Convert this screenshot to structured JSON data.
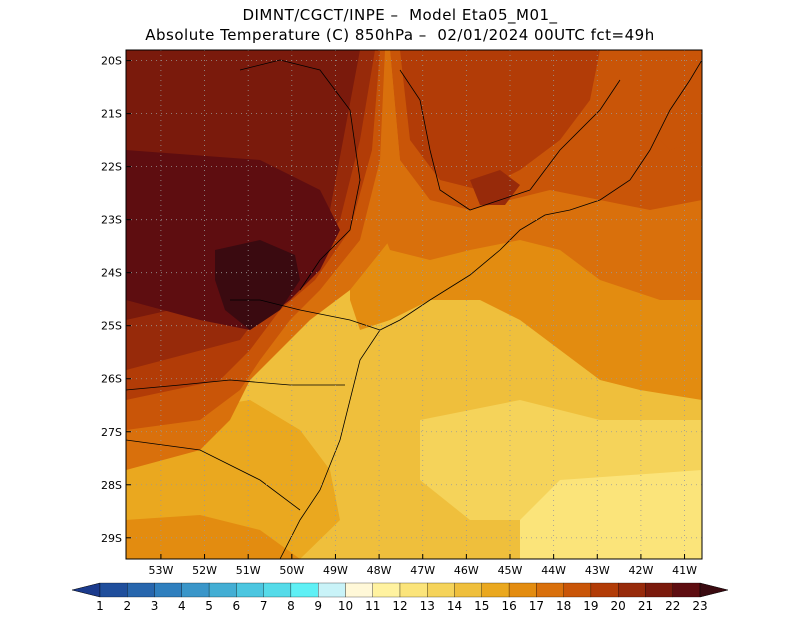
{
  "header": {
    "line1": "DIMNT/CGCT/INPE –  Model Eta05_M01_",
    "line2": "Absolute Temperature (C) 850hPa –  02/01/2024 00UTC fct=49h"
  },
  "map": {
    "lon_range": [
      -53.8,
      -40.6
    ],
    "lat_range": [
      -29.4,
      -19.8
    ],
    "lon_ticks": [
      {
        "value": -53,
        "label": "53W"
      },
      {
        "value": -52,
        "label": "52W"
      },
      {
        "value": -51,
        "label": "51W"
      },
      {
        "value": -50,
        "label": "50W"
      },
      {
        "value": -49,
        "label": "49W"
      },
      {
        "value": -48,
        "label": "48W"
      },
      {
        "value": -47,
        "label": "47W"
      },
      {
        "value": -46,
        "label": "46W"
      },
      {
        "value": -45,
        "label": "45W"
      },
      {
        "value": -44,
        "label": "44W"
      },
      {
        "value": -43,
        "label": "43W"
      },
      {
        "value": -42,
        "label": "42W"
      },
      {
        "value": -41,
        "label": "41W"
      }
    ],
    "lat_ticks": [
      {
        "value": -20,
        "label": "20S"
      },
      {
        "value": -21,
        "label": "21S"
      },
      {
        "value": -22,
        "label": "22S"
      },
      {
        "value": -23,
        "label": "23S"
      },
      {
        "value": -24,
        "label": "24S"
      },
      {
        "value": -25,
        "label": "25S"
      },
      {
        "value": -26,
        "label": "26S"
      },
      {
        "value": -27,
        "label": "27S"
      },
      {
        "value": -28,
        "label": "28S"
      },
      {
        "value": -29,
        "label": "29S"
      }
    ],
    "grid": "dotted"
  },
  "colorbar": {
    "labels": [
      "1",
      "2",
      "3",
      "4",
      "5",
      "6",
      "7",
      "8",
      "9",
      "10",
      "11",
      "12",
      "13",
      "14",
      "15",
      "16",
      "17",
      "18",
      "19",
      "20",
      "21",
      "22",
      "23"
    ],
    "colors": [
      "#1b3a8c",
      "#1f4e9c",
      "#2766ad",
      "#2f7fbe",
      "#3a96c9",
      "#43aed4",
      "#4cc6e0",
      "#55dbe9",
      "#5ff0f5",
      "#c9f3f8",
      "#fff8d8",
      "#fff2a0",
      "#fbe47a",
      "#f5d35a",
      "#efbf3c",
      "#eaa81f",
      "#e38c10",
      "#d9700c",
      "#c95508",
      "#b23c07",
      "#972a0a",
      "#7a1a0c",
      "#5e0d10",
      "#3a0a10"
    ]
  }
}
